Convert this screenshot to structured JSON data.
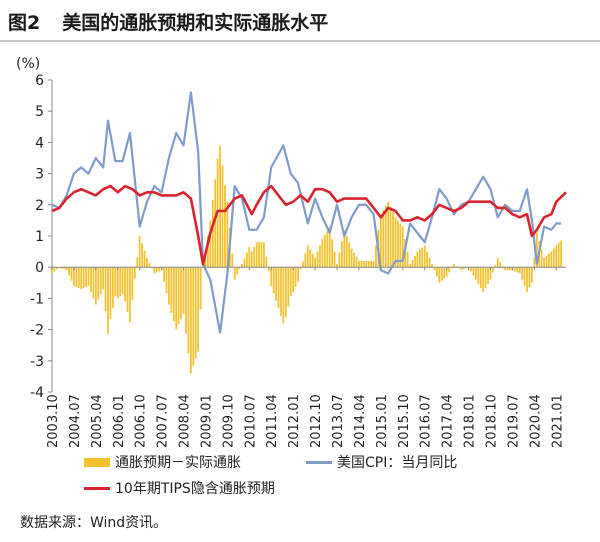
{
  "header": {
    "figure_number": "图2",
    "title": "美国的通胀预期和实际通胀水平"
  },
  "source": "数据来源：Wind资讯。",
  "colors": {
    "bar": "#f2c12e",
    "cpi": "#7f9bcb",
    "tips": "#d9232e",
    "axis": "#888888"
  },
  "chart_data": {
    "type": "bar+line",
    "ylabel": "(%)",
    "ylim": [
      -4,
      6
    ],
    "yticks": [
      -4,
      -3,
      -2,
      -1,
      0,
      1,
      2,
      3,
      4,
      5,
      6
    ],
    "x_start": "2003.10",
    "x_end": "2021.05",
    "x_tick_labels": [
      "2003.10",
      "2004.07",
      "2005.04",
      "2006.01",
      "2006.10",
      "2007.07",
      "2008.04",
      "2009.01",
      "2009.10",
      "2010.07",
      "2011.04",
      "2012.01",
      "2012.10",
      "2013.07",
      "2014.04",
      "2015.01",
      "2015.10",
      "2016.07",
      "2017.04",
      "2018.01",
      "2018.10",
      "2019.07",
      "2020.04",
      "2021.01"
    ],
    "legend": [
      "通胀预期－实际通胀",
      "美国CPI：当月同比",
      "10年期TIPS隐含通胀预期"
    ],
    "series": [
      {
        "name": "10年期TIPS隐含通胀预期",
        "type": "line",
        "points": [
          [
            "2003.10",
            1.8
          ],
          [
            "2004.01",
            1.9
          ],
          [
            "2004.04",
            2.2
          ],
          [
            "2004.07",
            2.4
          ],
          [
            "2004.10",
            2.5
          ],
          [
            "2005.01",
            2.4
          ],
          [
            "2005.04",
            2.3
          ],
          [
            "2005.07",
            2.5
          ],
          [
            "2005.10",
            2.6
          ],
          [
            "2006.01",
            2.4
          ],
          [
            "2006.04",
            2.6
          ],
          [
            "2006.07",
            2.5
          ],
          [
            "2006.10",
            2.3
          ],
          [
            "2007.01",
            2.4
          ],
          [
            "2007.04",
            2.4
          ],
          [
            "2007.07",
            2.3
          ],
          [
            "2007.10",
            2.3
          ],
          [
            "2008.01",
            2.3
          ],
          [
            "2008.04",
            2.4
          ],
          [
            "2008.07",
            2.2
          ],
          [
            "2008.10",
            1.0
          ],
          [
            "2008.12",
            0.1
          ],
          [
            "2009.03",
            1.1
          ],
          [
            "2009.06",
            1.8
          ],
          [
            "2009.09",
            1.8
          ],
          [
            "2010.01",
            2.2
          ],
          [
            "2010.04",
            2.3
          ],
          [
            "2010.08",
            1.7
          ],
          [
            "2010.10",
            2.0
          ],
          [
            "2011.01",
            2.4
          ],
          [
            "2011.04",
            2.6
          ],
          [
            "2011.07",
            2.3
          ],
          [
            "2011.10",
            2.0
          ],
          [
            "2012.01",
            2.1
          ],
          [
            "2012.04",
            2.3
          ],
          [
            "2012.07",
            2.1
          ],
          [
            "2012.10",
            2.5
          ],
          [
            "2013.01",
            2.5
          ],
          [
            "2013.04",
            2.4
          ],
          [
            "2013.07",
            2.1
          ],
          [
            "2013.10",
            2.2
          ],
          [
            "2014.01",
            2.2
          ],
          [
            "2014.04",
            2.2
          ],
          [
            "2014.07",
            2.2
          ],
          [
            "2014.10",
            1.9
          ],
          [
            "2015.01",
            1.6
          ],
          [
            "2015.04",
            1.9
          ],
          [
            "2015.07",
            1.8
          ],
          [
            "2015.10",
            1.5
          ],
          [
            "2016.01",
            1.5
          ],
          [
            "2016.04",
            1.6
          ],
          [
            "2016.07",
            1.5
          ],
          [
            "2016.10",
            1.7
          ],
          [
            "2017.01",
            2.0
          ],
          [
            "2017.04",
            1.9
          ],
          [
            "2017.07",
            1.8
          ],
          [
            "2017.10",
            1.9
          ],
          [
            "2018.01",
            2.1
          ],
          [
            "2018.04",
            2.1
          ],
          [
            "2018.07",
            2.1
          ],
          [
            "2018.10",
            2.1
          ],
          [
            "2019.01",
            1.9
          ],
          [
            "2019.04",
            1.9
          ],
          [
            "2019.07",
            1.7
          ],
          [
            "2019.10",
            1.6
          ],
          [
            "2020.01",
            1.7
          ],
          [
            "2020.03",
            1.0
          ],
          [
            "2020.05",
            1.2
          ],
          [
            "2020.08",
            1.6
          ],
          [
            "2020.11",
            1.7
          ],
          [
            "2021.01",
            2.1
          ],
          [
            "2021.05",
            2.4
          ]
        ]
      },
      {
        "name": "美国CPI：当月同比",
        "type": "line",
        "points": [
          [
            "2003.10",
            2.0
          ],
          [
            "2004.01",
            1.9
          ],
          [
            "2004.04",
            2.3
          ],
          [
            "2004.07",
            3.0
          ],
          [
            "2004.10",
            3.2
          ],
          [
            "2005.01",
            3.0
          ],
          [
            "2005.04",
            3.5
          ],
          [
            "2005.07",
            3.2
          ],
          [
            "2005.09",
            4.7
          ],
          [
            "2005.12",
            3.4
          ],
          [
            "2006.03",
            3.4
          ],
          [
            "2006.06",
            4.3
          ],
          [
            "2006.10",
            1.3
          ],
          [
            "2007.01",
            2.1
          ],
          [
            "2007.04",
            2.6
          ],
          [
            "2007.07",
            2.4
          ],
          [
            "2007.10",
            3.5
          ],
          [
            "2008.01",
            4.3
          ],
          [
            "2008.04",
            3.9
          ],
          [
            "2008.07",
            5.6
          ],
          [
            "2008.10",
            3.7
          ],
          [
            "2008.12",
            0.1
          ],
          [
            "2009.03",
            -0.4
          ],
          [
            "2009.07",
            -2.1
          ],
          [
            "2009.10",
            -0.2
          ],
          [
            "2010.01",
            2.6
          ],
          [
            "2010.04",
            2.2
          ],
          [
            "2010.07",
            1.2
          ],
          [
            "2010.10",
            1.2
          ],
          [
            "2011.01",
            1.6
          ],
          [
            "2011.04",
            3.2
          ],
          [
            "2011.09",
            3.9
          ],
          [
            "2011.12",
            3.0
          ],
          [
            "2012.03",
            2.7
          ],
          [
            "2012.07",
            1.4
          ],
          [
            "2012.10",
            2.2
          ],
          [
            "2013.01",
            1.6
          ],
          [
            "2013.04",
            1.1
          ],
          [
            "2013.07",
            2.0
          ],
          [
            "2013.10",
            1.0
          ],
          [
            "2014.01",
            1.6
          ],
          [
            "2014.04",
            2.0
          ],
          [
            "2014.07",
            2.0
          ],
          [
            "2014.10",
            1.7
          ],
          [
            "2015.01",
            -0.1
          ],
          [
            "2015.04",
            -0.2
          ],
          [
            "2015.07",
            0.2
          ],
          [
            "2015.10",
            0.2
          ],
          [
            "2016.01",
            1.4
          ],
          [
            "2016.04",
            1.1
          ],
          [
            "2016.07",
            0.8
          ],
          [
            "2016.10",
            1.6
          ],
          [
            "2017.01",
            2.5
          ],
          [
            "2017.04",
            2.2
          ],
          [
            "2017.07",
            1.7
          ],
          [
            "2017.10",
            2.0
          ],
          [
            "2018.01",
            2.1
          ],
          [
            "2018.04",
            2.5
          ],
          [
            "2018.07",
            2.9
          ],
          [
            "2018.10",
            2.5
          ],
          [
            "2019.01",
            1.6
          ],
          [
            "2019.04",
            2.0
          ],
          [
            "2019.07",
            1.8
          ],
          [
            "2019.10",
            1.8
          ],
          [
            "2020.01",
            2.5
          ],
          [
            "2020.03",
            1.5
          ],
          [
            "2020.05",
            0.1
          ],
          [
            "2020.08",
            1.3
          ],
          [
            "2020.11",
            1.2
          ],
          [
            "2021.01",
            1.4
          ],
          [
            "2021.03",
            1.4
          ]
        ]
      },
      {
        "name": "通胀预期－实际通胀",
        "type": "bar",
        "note": "monthly values = TIPS implied expectation minus CPI y/y"
      }
    ]
  }
}
